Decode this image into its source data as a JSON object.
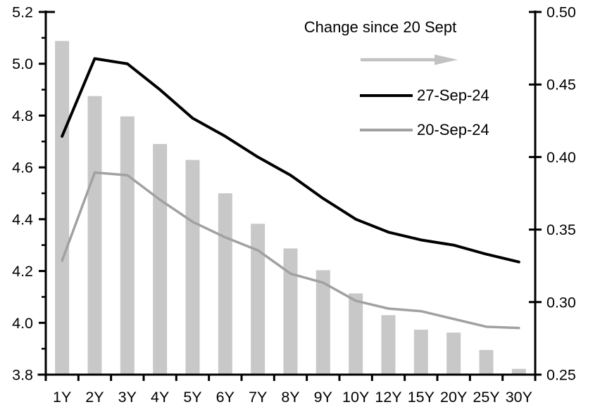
{
  "chart_data": {
    "type": "combo",
    "title": "",
    "grid": false,
    "legend_position": "inside-top-right",
    "categories": [
      "1Y",
      "2Y",
      "3Y",
      "4Y",
      "5Y",
      "6Y",
      "7Y",
      "8Y",
      "9Y",
      "10Y",
      "12Y",
      "15Y",
      "20Y",
      "25Y",
      "30Y"
    ],
    "left_axis": {
      "min": 3.8,
      "max": 5.2,
      "major_step": 0.2,
      "minor_step": 0.1,
      "tick_labels": [
        "5.2",
        "5.0",
        "4.8",
        "4.6",
        "4.4",
        "4.2",
        "4.0",
        "3.8"
      ]
    },
    "right_axis": {
      "min": 0.25,
      "max": 0.5,
      "major_step": 0.05,
      "tick_labels": [
        "0.50",
        "0.45",
        "0.40",
        "0.35",
        "0.30",
        "0.25"
      ]
    },
    "series": [
      {
        "name": "Change since 20 Sept",
        "type": "bar",
        "axis": "right",
        "color": "#c8c8c8",
        "values": [
          0.48,
          0.442,
          0.428,
          0.409,
          0.398,
          0.375,
          0.354,
          0.337,
          0.322,
          0.306,
          0.291,
          0.281,
          0.279,
          0.267,
          0.254
        ]
      },
      {
        "name": "27-Sep-24",
        "type": "line",
        "axis": "left",
        "color": "#000000",
        "values": [
          4.72,
          5.02,
          5.0,
          4.9,
          4.79,
          4.72,
          4.64,
          4.57,
          4.48,
          4.4,
          4.35,
          4.32,
          4.3,
          4.265,
          4.235
        ]
      },
      {
        "name": "20-Sep-24",
        "type": "line",
        "axis": "left",
        "color": "#a1a1a1",
        "values": [
          4.24,
          4.58,
          4.57,
          4.475,
          4.39,
          4.33,
          4.28,
          4.19,
          4.155,
          4.085,
          4.055,
          4.045,
          4.015,
          3.985,
          3.98
        ]
      }
    ],
    "legend": {
      "arrow_icon": "right-arrow",
      "arrow_color": "#c2c2c2"
    }
  }
}
